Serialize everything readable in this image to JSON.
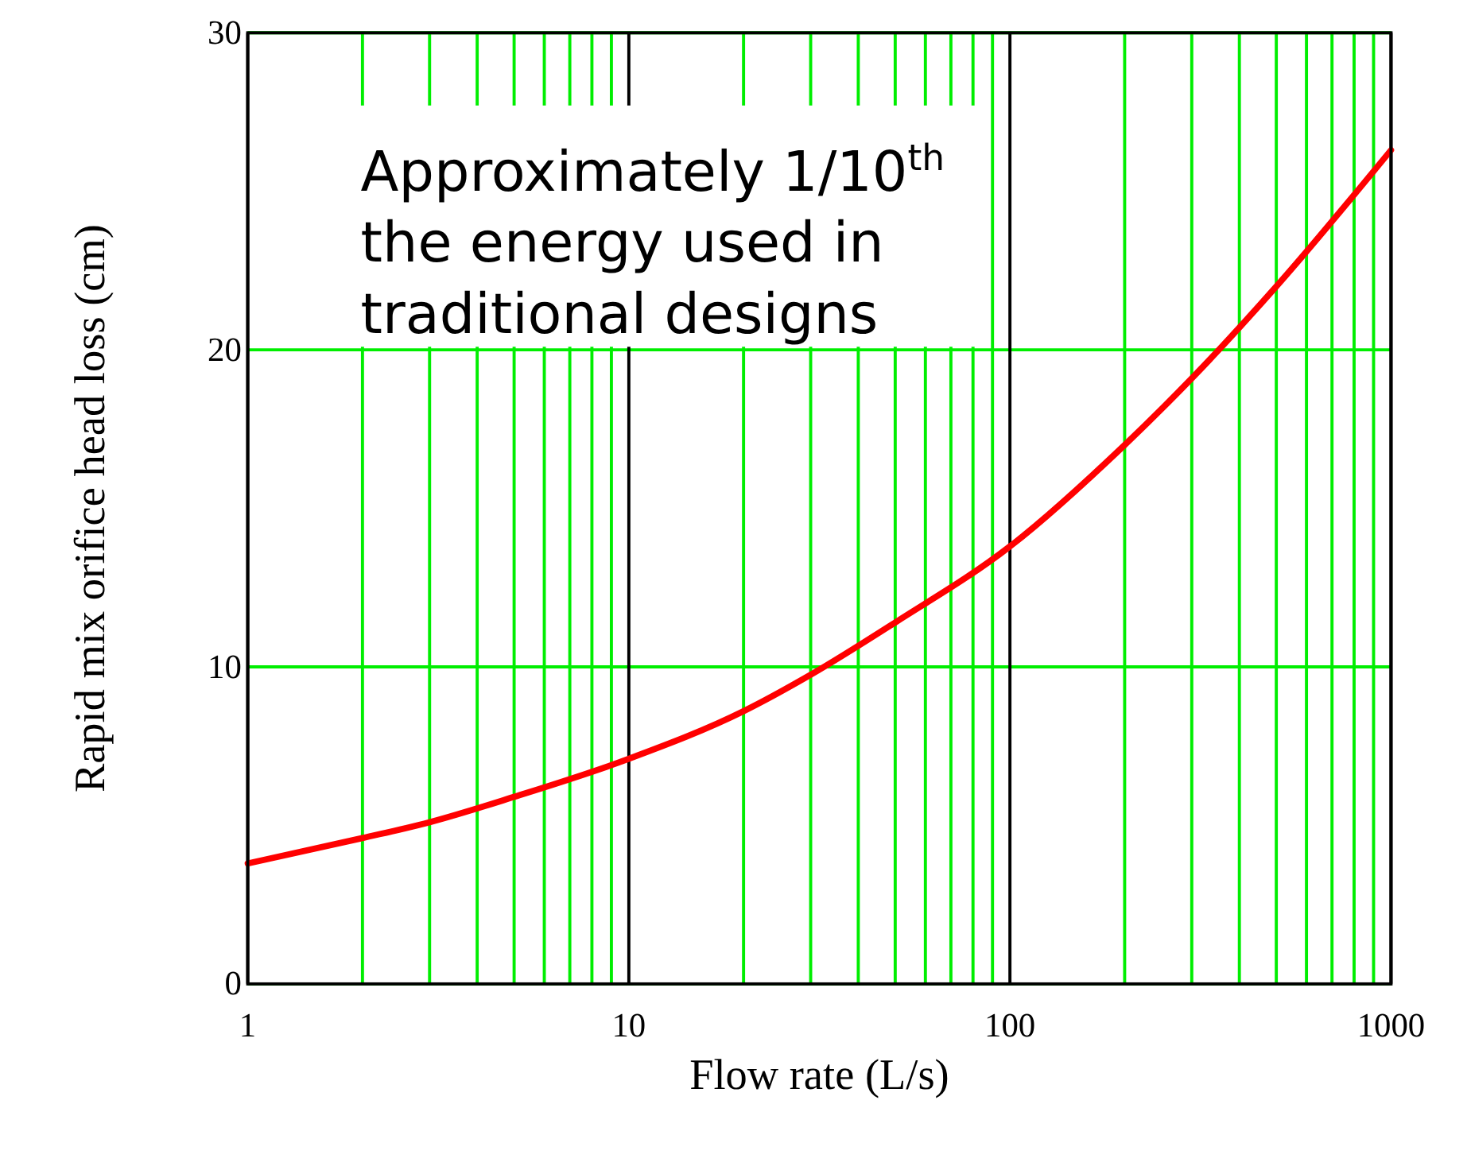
{
  "chart_data": {
    "type": "line",
    "xlabel": "Flow rate (L/s)",
    "ylabel": "Rapid mix orifice head loss (cm)",
    "annotations": [
      "Approximately 1/10$^{th}$ the energy used in traditional designs"
    ],
    "log": "x",
    "grid": true,
    "xlim": [
      1,
      1000
    ],
    "ylim": [
      0,
      30
    ],
    "xticks": [
      1,
      10,
      100,
      1000
    ],
    "yticks": [
      0,
      10,
      20,
      30
    ],
    "x": [
      1,
      2,
      3,
      5,
      10,
      20,
      30,
      50,
      100,
      200,
      300,
      500,
      1000
    ],
    "series": [
      {
        "color": "#ff0000",
        "values": [
          3.8,
          4.6,
          5.1,
          5.9,
          7.1,
          8.6,
          9.75,
          11.4,
          13.8,
          17.0,
          19.1,
          22.0,
          26.3
        ]
      }
    ]
  }
}
